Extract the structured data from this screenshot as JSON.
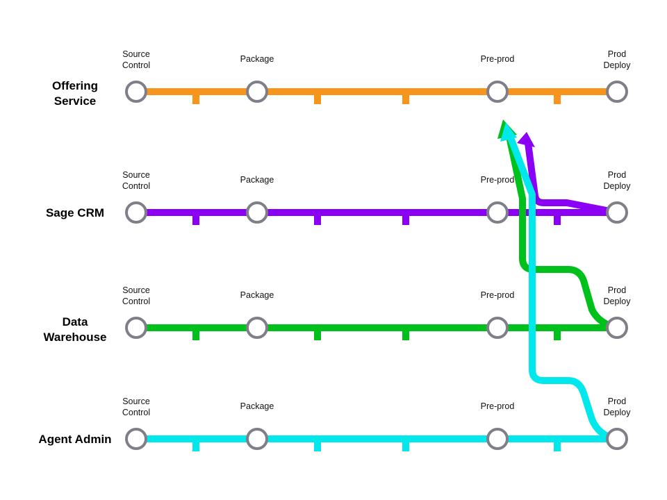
{
  "colors": {
    "station_ring": "#7f7f8a",
    "background": "#ffffff"
  },
  "pipelines": [
    {
      "name_lines": [
        "Offering",
        "Service"
      ],
      "color": "#f7941d",
      "stages": [
        [
          "Source",
          "Control"
        ],
        [
          "Package"
        ],
        [
          "Pre-prod"
        ],
        [
          "Prod",
          "Deploy"
        ]
      ]
    },
    {
      "name_lines": [
        "Sage CRM"
      ],
      "color": "#8b00f5",
      "stages": [
        [
          "Source",
          "Control"
        ],
        [
          "Package"
        ],
        [
          "Pre-prod"
        ],
        [
          "Prod",
          "Deploy"
        ]
      ]
    },
    {
      "name_lines": [
        "Data",
        "Warehouse"
      ],
      "color": "#00c01c",
      "stages": [
        [
          "Source",
          "Control"
        ],
        [
          "Package"
        ],
        [
          "Pre-prod"
        ],
        [
          "Prod",
          "Deploy"
        ]
      ]
    },
    {
      "name_lines": [
        "Agent Admin"
      ],
      "color": "#00e8ec",
      "stages": [
        [
          "Source",
          "Control"
        ],
        [
          "Package"
        ],
        [
          "Pre-prod"
        ],
        [
          "Prod",
          "Deploy"
        ]
      ]
    }
  ],
  "feedback_links": [
    {
      "from_pipeline": "Sage CRM",
      "from_stage": "Prod Deploy",
      "to_pipeline": "Offering Service",
      "to_stage": "Pre-prod",
      "color": "#8b00f5"
    },
    {
      "from_pipeline": "Data Warehouse",
      "from_stage": "Prod Deploy",
      "to_pipeline": "Offering Service",
      "to_stage": "Pre-prod",
      "color": "#00c01c"
    },
    {
      "from_pipeline": "Agent Admin",
      "from_stage": "Prod Deploy",
      "to_pipeline": "Offering Service",
      "to_stage": "Pre-prod",
      "color": "#00e8ec"
    }
  ]
}
